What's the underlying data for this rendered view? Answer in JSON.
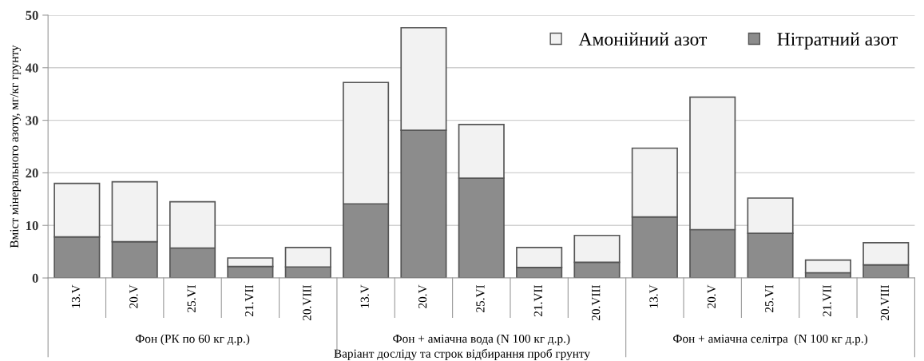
{
  "chart_data": {
    "type": "bar",
    "stacked": true,
    "ylabel": "Вміст мінерального азоту, мг/кг грунту",
    "xlabel": "Варіант досліду та строк відбирання проб грунту",
    "categories": [
      "13.V",
      "20.V",
      "25.VI",
      "21.VII",
      "20.VIII",
      "13.V",
      "20.V",
      "25.VI",
      "21.VII",
      "20.VIII",
      "13.V",
      "20.V",
      "25.VI",
      "21.VII",
      "20.VIII"
    ],
    "series": [
      {
        "name": "Нітратний азот",
        "color": "#8c8c8c",
        "values": [
          7.8,
          6.9,
          5.7,
          2.2,
          2.1,
          14.1,
          28.1,
          19.0,
          2.0,
          3.0,
          11.6,
          9.2,
          8.5,
          1.0,
          2.5
        ]
      },
      {
        "name": "Амонійний азот",
        "color": "#f2f2f2",
        "values": [
          10.2,
          11.4,
          8.8,
          1.6,
          3.7,
          23.1,
          19.5,
          10.2,
          3.8,
          5.1,
          13.1,
          25.2,
          6.7,
          2.4,
          4.2
        ]
      }
    ],
    "annotations": [
      "Фон (РК по 60 кг д.р.)",
      "Фон + аміачна вода (N 100 кг д.р.)",
      "Фон + аміачна селітра  (N 100 кг д.р.)"
    ],
    "ylim": [
      0,
      50
    ],
    "yticks": [
      0,
      10,
      20,
      30,
      40,
      50
    ],
    "grid": "y",
    "legend": "top right"
  }
}
